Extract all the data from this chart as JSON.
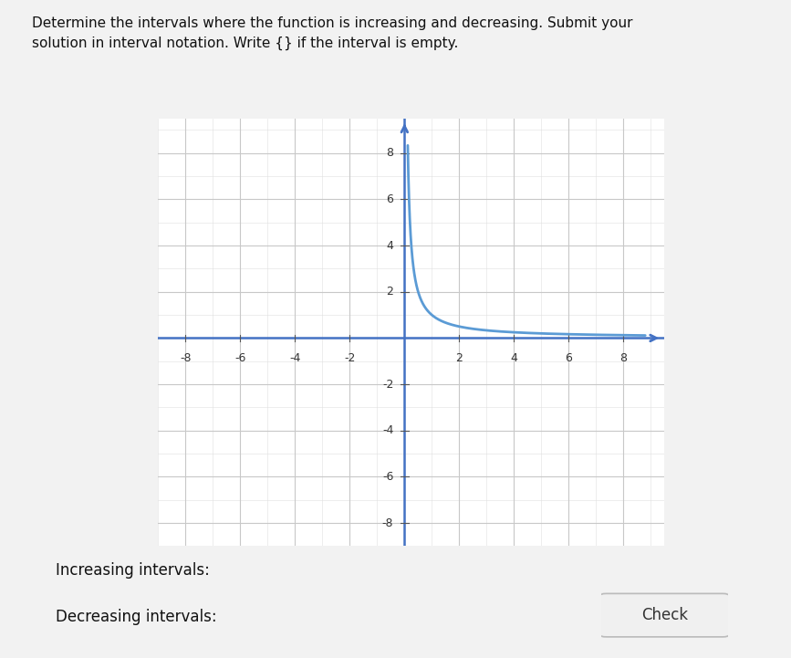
{
  "title_line1": "Determine the intervals where the function is increasing and decreasing. Submit your",
  "title_line2": "solution in interval notation. Write {} if the interval is empty.",
  "increasing_label": "Increasing intervals:",
  "decreasing_label": "Decreasing intervals:",
  "check_label": "Check",
  "xlim": [
    -9,
    9.5
  ],
  "ylim": [
    -9,
    9.5
  ],
  "xticks": [
    -8,
    -6,
    -4,
    -2,
    2,
    4,
    6,
    8
  ],
  "yticks": [
    -8,
    -6,
    -4,
    -2,
    2,
    4,
    6,
    8
  ],
  "curve_color": "#5b9bd5",
  "curve_linewidth": 2.0,
  "axis_color": "#4472c4",
  "grid_major_color": "#c8c8c8",
  "grid_minor_color": "#e0e0e0",
  "background_color": "#f2f2f2",
  "plot_bg_color": "#ffffff",
  "curve_x_start": 0.12,
  "curve_x_end": 8.8,
  "curve_scale": 1.0
}
